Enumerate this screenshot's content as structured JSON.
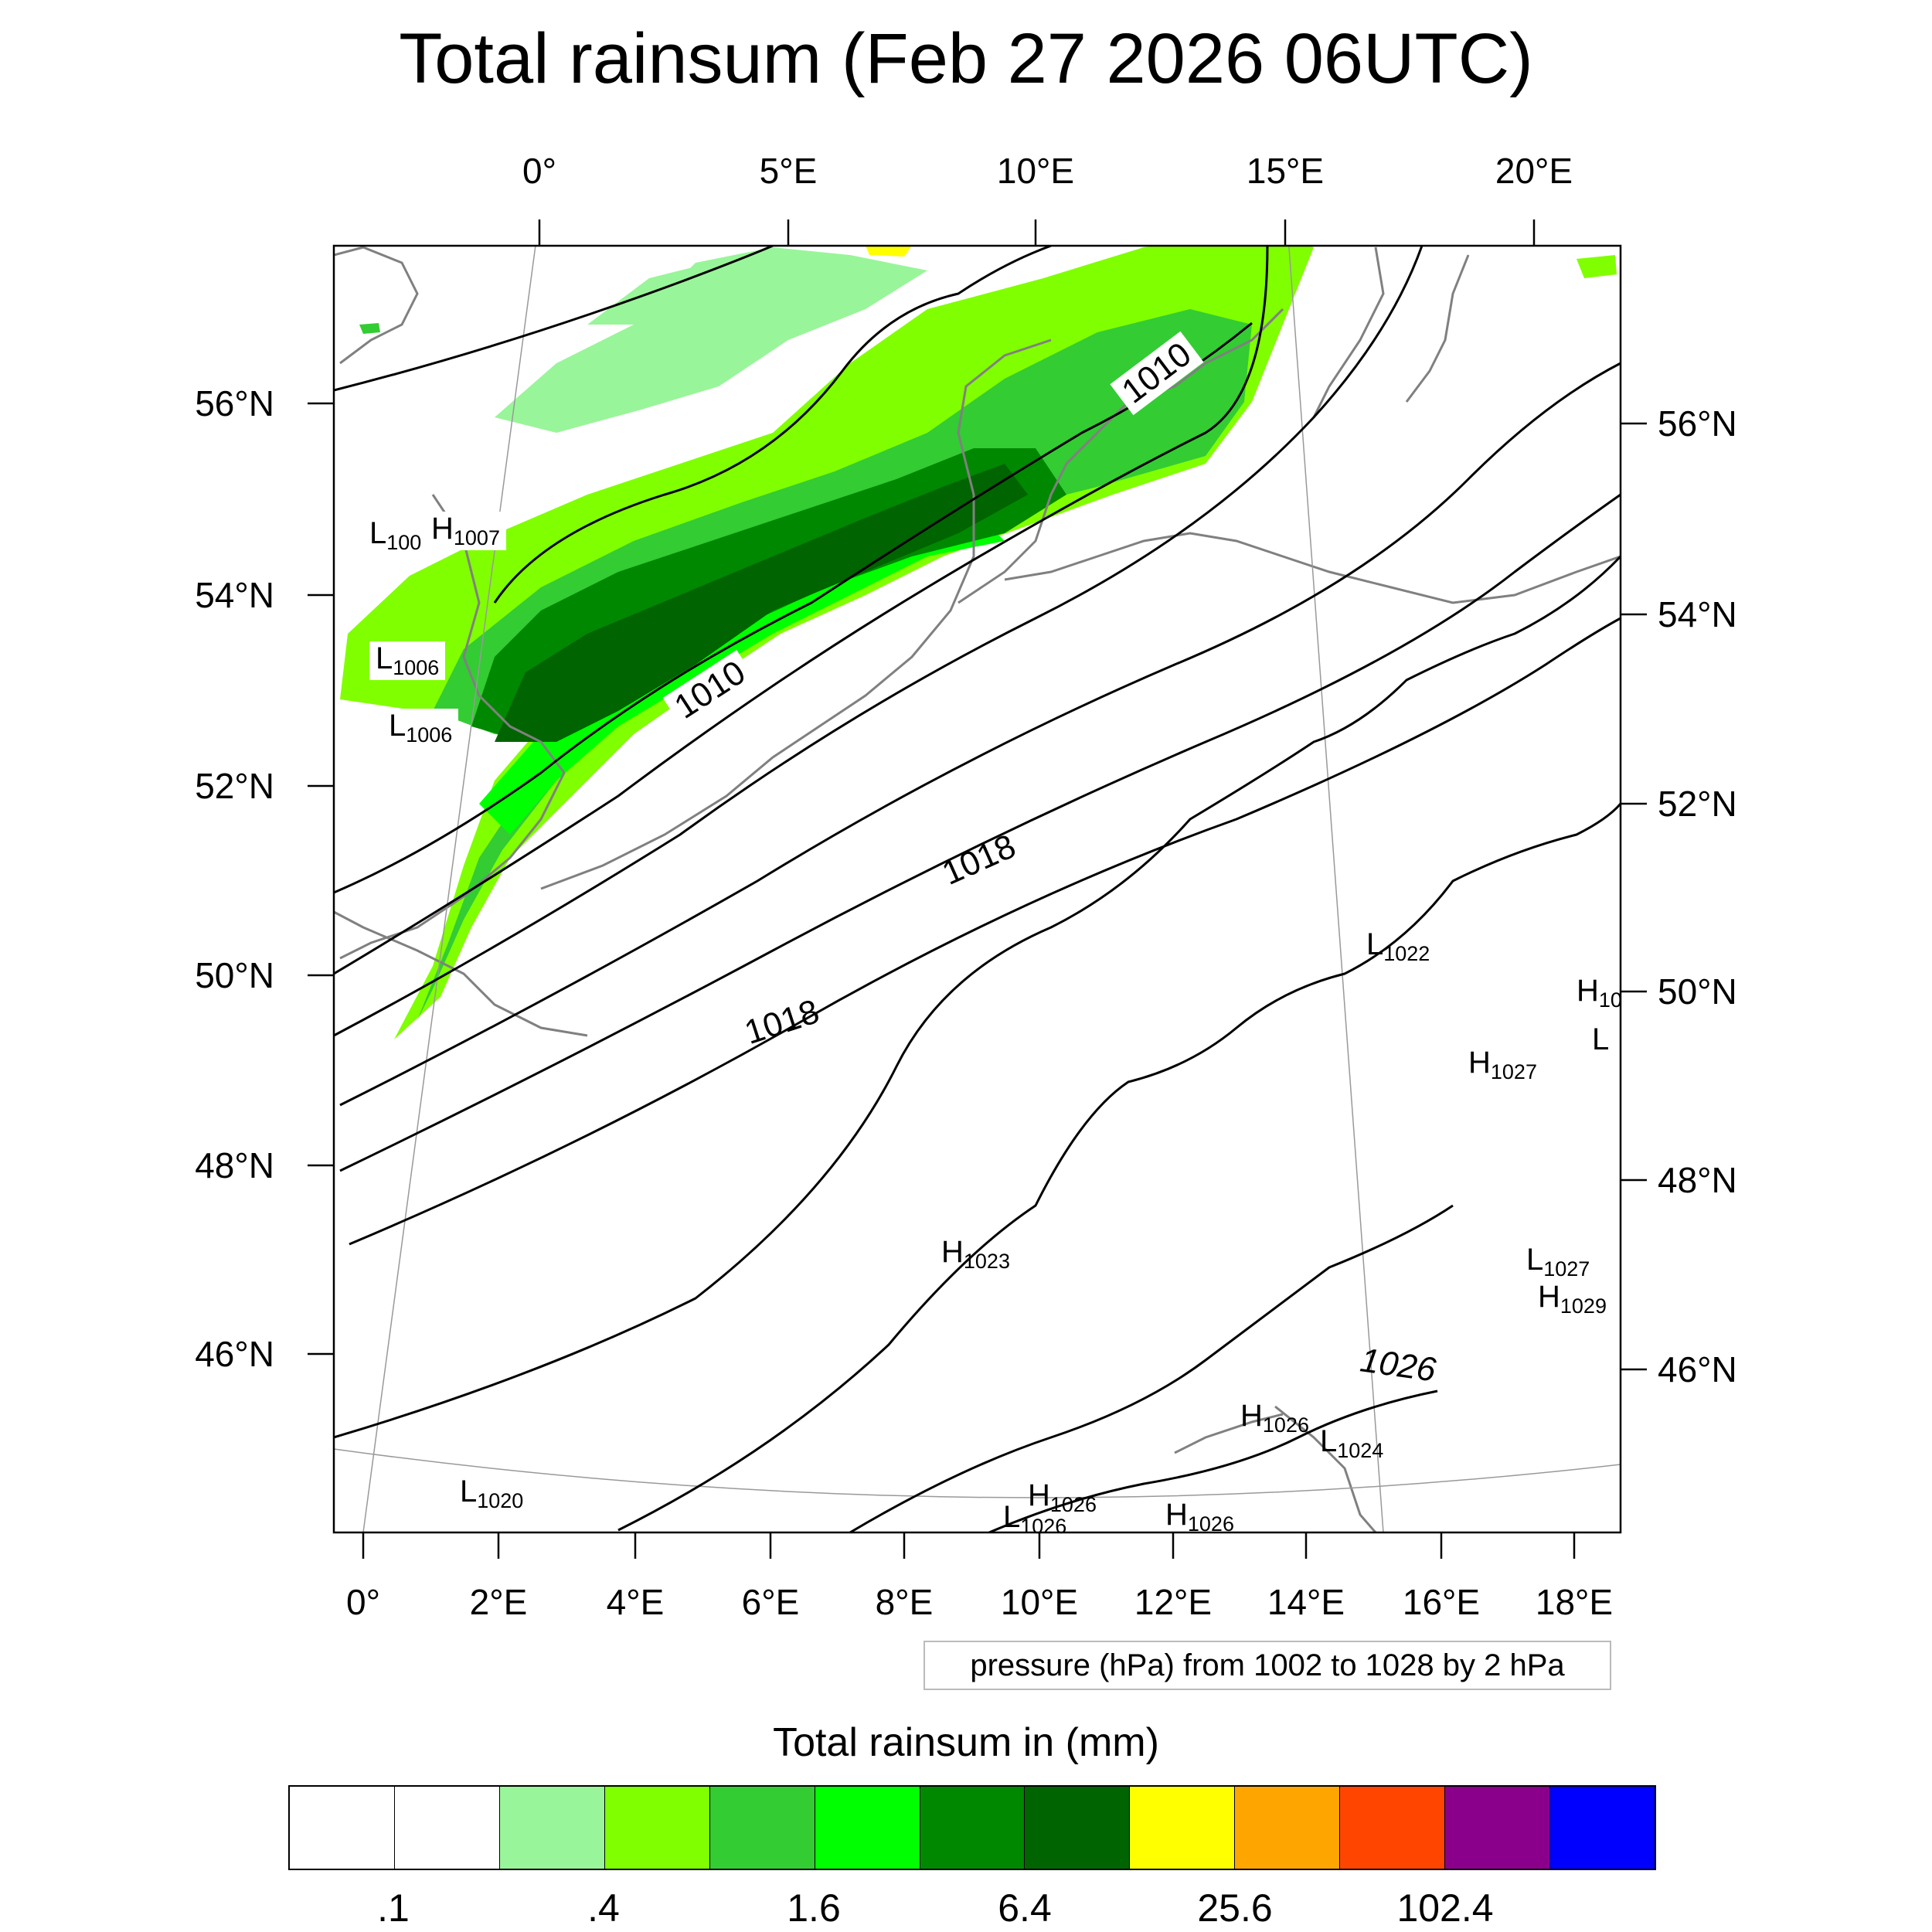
{
  "title": "Total rainsum (Feb 27 2026 06UTC)",
  "top_lon_labels": [
    "0°",
    "5°E",
    "10°E",
    "15°E",
    "20°E"
  ],
  "bottom_lon_labels": [
    "0°",
    "2°E",
    "4°E",
    "6°E",
    "8°E",
    "10°E",
    "12°E",
    "14°E",
    "16°E",
    "18°E"
  ],
  "left_lat_labels": [
    "56°N",
    "54°N",
    "52°N",
    "50°N",
    "48°N",
    "46°N"
  ],
  "right_lat_labels": [
    "56°N",
    "54°N",
    "52°N",
    "50°N",
    "48°N",
    "46°N"
  ],
  "contour_labels": [
    "1010",
    "1010",
    "1018",
    "1018",
    "1026"
  ],
  "pressure_centers": [
    {
      "letter": "L",
      "value": "100"
    },
    {
      "letter": "H",
      "value": "1007"
    },
    {
      "letter": "L",
      "value": "1006"
    },
    {
      "letter": "L",
      "value": "1006"
    },
    {
      "letter": "L",
      "value": "1022"
    },
    {
      "letter": "H",
      "value": "10"
    },
    {
      "letter": "L",
      "value": ""
    },
    {
      "letter": "H",
      "value": "1027"
    },
    {
      "letter": "H",
      "value": "1023"
    },
    {
      "letter": "L",
      "value": "1027"
    },
    {
      "letter": "H",
      "value": "1029"
    },
    {
      "letter": "H",
      "value": "1026"
    },
    {
      "letter": "L",
      "value": "1024"
    },
    {
      "letter": "L",
      "value": "1020"
    },
    {
      "letter": "H",
      "value": "1026"
    },
    {
      "letter": "L",
      "value": "1026"
    },
    {
      "letter": "H",
      "value": "1026"
    }
  ],
  "caption": "pressure (hPa) from 1002 to 1028 by 2 hPa",
  "colorbar": {
    "title": "Total rainsum in (mm)",
    "colors": [
      "#ffffff",
      "#ffffff",
      "#99f599",
      "#80ff00",
      "#33cc33",
      "#00ff00",
      "#008800",
      "#006400",
      "#ffff00",
      "#ffa500",
      "#ff4500",
      "#8b008b",
      "#0000ff"
    ],
    "labels": [
      ".1",
      ".4",
      "1.6",
      "6.4",
      "25.6",
      "102.4"
    ]
  },
  "map": {
    "projection": "conic",
    "pressure_contour_interval_hpa": 2,
    "pressure_range_hpa": [
      1002,
      1028
    ],
    "rain_colors": {
      "light": "#99f599",
      "lime": "#80ff00",
      "mid": "#33cc33",
      "bright": "#00ff00",
      "dark": "#008800",
      "darker": "#006400",
      "yellow": "#ffff00"
    }
  }
}
